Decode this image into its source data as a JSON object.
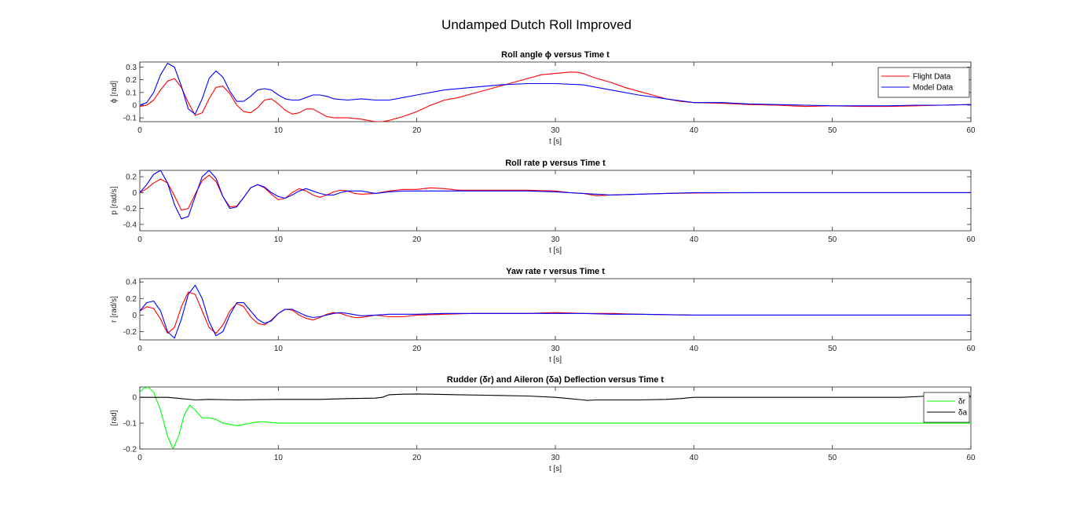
{
  "figure": {
    "title": "Undamped Dutch Roll Improved"
  },
  "chart_data": [
    {
      "type": "line",
      "title": "Roll angle ϕ versus Time t",
      "xlabel": "t [s]",
      "ylabel": "ϕ [rad]",
      "xlim": [
        0,
        60
      ],
      "ylim": [
        -0.13,
        0.34
      ],
      "xticks": [
        "0",
        "10",
        "20",
        "30",
        "40",
        "50",
        "60"
      ],
      "yticks": [
        "0.3",
        "0.2",
        "0.1",
        "0",
        "-0.1"
      ],
      "ytick_values": [
        0.3,
        0.2,
        0.1,
        0,
        -0.1
      ],
      "legend_position": "top-right",
      "series": [
        {
          "name": "Flight Data",
          "color": "#ff0000",
          "x": [
            0,
            0.5,
            1,
            1.5,
            2,
            2.5,
            3,
            3.5,
            4,
            4.5,
            5,
            5.5,
            6,
            6.5,
            7,
            7.5,
            8,
            8.5,
            9,
            9.5,
            10,
            10.5,
            11,
            11.5,
            12,
            12.5,
            13,
            13.5,
            14,
            15,
            16,
            17,
            17.5,
            18,
            19,
            20,
            21,
            22,
            23,
            24,
            25,
            26,
            27,
            28,
            29,
            30,
            31,
            31.5,
            32,
            33,
            34,
            35,
            36,
            37,
            38,
            39,
            40,
            42,
            44,
            46,
            48,
            50,
            52,
            54,
            56,
            58,
            60
          ],
          "y": [
            -0.01,
            0.0,
            0.04,
            0.12,
            0.19,
            0.21,
            0.14,
            0.02,
            -0.08,
            -0.06,
            0.05,
            0.14,
            0.15,
            0.09,
            0.0,
            -0.05,
            -0.06,
            -0.02,
            0.04,
            0.05,
            0.01,
            -0.04,
            -0.07,
            -0.06,
            -0.03,
            -0.03,
            -0.06,
            -0.09,
            -0.1,
            -0.1,
            -0.11,
            -0.13,
            -0.13,
            -0.12,
            -0.09,
            -0.05,
            -0.0,
            0.04,
            0.06,
            0.09,
            0.12,
            0.15,
            0.18,
            0.21,
            0.24,
            0.25,
            0.26,
            0.26,
            0.25,
            0.21,
            0.18,
            0.14,
            0.11,
            0.08,
            0.05,
            0.03,
            0.02,
            0.015,
            0.005,
            0.0,
            -0.01,
            -0.005,
            -0.01,
            -0.01,
            -0.005,
            0.0,
            0.005
          ]
        },
        {
          "name": "Model Data",
          "color": "#0000ff",
          "x": [
            0,
            0.5,
            1,
            1.5,
            2,
            2.5,
            3,
            3.5,
            4,
            4.5,
            5,
            5.5,
            6,
            6.5,
            7,
            7.5,
            8,
            8.5,
            9,
            9.5,
            10,
            10.5,
            11,
            11.5,
            12,
            12.5,
            13,
            13.5,
            14,
            15,
            16,
            17,
            18,
            19,
            20,
            22,
            24,
            26,
            28,
            30,
            32,
            34,
            36,
            38,
            40,
            42,
            44,
            46,
            48,
            50,
            52,
            54,
            56,
            58,
            60
          ],
          "y": [
            0.0,
            0.02,
            0.1,
            0.24,
            0.33,
            0.3,
            0.15,
            -0.03,
            -0.07,
            0.05,
            0.21,
            0.27,
            0.22,
            0.11,
            0.03,
            0.03,
            0.07,
            0.12,
            0.13,
            0.12,
            0.08,
            0.05,
            0.04,
            0.04,
            0.06,
            0.08,
            0.08,
            0.07,
            0.05,
            0.04,
            0.05,
            0.04,
            0.04,
            0.06,
            0.08,
            0.12,
            0.14,
            0.16,
            0.17,
            0.17,
            0.16,
            0.12,
            0.08,
            0.05,
            0.02,
            0.02,
            0.01,
            0.005,
            0.0,
            -0.005,
            -0.005,
            -0.005,
            0.0,
            0.0,
            0.005
          ]
        }
      ]
    },
    {
      "type": "line",
      "title": "Roll rate p versus Time t",
      "xlabel": "t [s]",
      "ylabel": "p [rad/s]",
      "xlim": [
        0,
        60
      ],
      "ylim": [
        -0.48,
        0.28
      ],
      "xticks": [
        "0",
        "10",
        "20",
        "30",
        "40",
        "50",
        "60"
      ],
      "yticks": [
        "0.2",
        "0",
        "-0.2",
        "-0.4"
      ],
      "ytick_values": [
        0.2,
        0,
        -0.2,
        -0.4
      ],
      "series": [
        {
          "color": "#ff0000",
          "x": [
            0,
            0.5,
            1,
            1.5,
            2,
            2.5,
            3,
            3.5,
            4,
            4.5,
            5,
            5.5,
            6,
            6.5,
            7,
            7.5,
            8,
            8.5,
            9,
            9.5,
            10,
            10.5,
            11,
            11.5,
            12,
            12.5,
            13,
            13.5,
            14,
            14.5,
            15,
            15.5,
            16,
            17,
            18,
            19,
            20,
            21,
            22,
            23,
            24,
            26,
            28,
            30,
            31,
            32,
            33,
            34,
            36,
            38,
            40,
            45,
            50,
            55,
            60
          ],
          "y": [
            0.0,
            0.05,
            0.12,
            0.17,
            0.12,
            -0.04,
            -0.22,
            -0.2,
            -0.02,
            0.15,
            0.22,
            0.14,
            -0.05,
            -0.18,
            -0.17,
            -0.06,
            0.06,
            0.1,
            0.06,
            -0.02,
            -0.09,
            -0.07,
            0.0,
            0.05,
            0.02,
            -0.03,
            -0.06,
            -0.03,
            0.01,
            0.03,
            0.02,
            -0.01,
            -0.02,
            -0.01,
            0.02,
            0.04,
            0.04,
            0.06,
            0.05,
            0.03,
            0.03,
            0.03,
            0.03,
            0.02,
            0.0,
            -0.01,
            -0.04,
            -0.03,
            -0.02,
            -0.01,
            -0.005,
            0.0,
            0.0,
            0.0,
            0.0
          ]
        },
        {
          "color": "#0000ff",
          "x": [
            0,
            0.5,
            1,
            1.5,
            2,
            2.5,
            3,
            3.5,
            4,
            4.5,
            5,
            5.5,
            6,
            6.5,
            7,
            7.5,
            8,
            8.5,
            9,
            9.5,
            10,
            10.5,
            11,
            11.5,
            12,
            12.5,
            13,
            13.5,
            14,
            14.5,
            15,
            16,
            17,
            18,
            19,
            20,
            22,
            24,
            26,
            28,
            30,
            31,
            32,
            34,
            36,
            38,
            40,
            45,
            50,
            55,
            60
          ],
          "y": [
            0.0,
            0.1,
            0.23,
            0.28,
            0.12,
            -0.15,
            -0.33,
            -0.3,
            -0.05,
            0.2,
            0.28,
            0.18,
            -0.05,
            -0.2,
            -0.18,
            -0.06,
            0.06,
            0.1,
            0.07,
            0.0,
            -0.05,
            -0.07,
            -0.03,
            0.02,
            0.05,
            0.02,
            -0.01,
            -0.03,
            -0.03,
            0.0,
            0.02,
            0.02,
            -0.01,
            0.01,
            0.02,
            0.02,
            0.02,
            0.02,
            0.02,
            0.02,
            0.01,
            0.0,
            -0.01,
            -0.03,
            -0.02,
            -0.01,
            0.0,
            0.0,
            0.0,
            0.0,
            0.0
          ]
        }
      ]
    },
    {
      "type": "line",
      "title": "Yaw rate r versus Time t",
      "xlabel": "t [s]",
      "ylabel": "r [rad/s]",
      "xlim": [
        0,
        60
      ],
      "ylim": [
        -0.3,
        0.44
      ],
      "xticks": [
        "0",
        "10",
        "20",
        "30",
        "40",
        "50",
        "60"
      ],
      "yticks": [
        "0.4",
        "0.2",
        "0",
        "-0.2"
      ],
      "ytick_values": [
        0.4,
        0.2,
        0,
        -0.2
      ],
      "series": [
        {
          "color": "#ff0000",
          "x": [
            0,
            0.5,
            1,
            1.5,
            2,
            2.5,
            3,
            3.5,
            4,
            4.5,
            5,
            5.5,
            6,
            6.5,
            7,
            7.5,
            8,
            8.5,
            9,
            9.5,
            10,
            10.5,
            11,
            11.5,
            12,
            12.5,
            13,
            13.5,
            14,
            14.5,
            15,
            15.5,
            16,
            17,
            18,
            19,
            20,
            22,
            24,
            26,
            28,
            30,
            32,
            34,
            36,
            40,
            45,
            50,
            55,
            60
          ],
          "y": [
            0.05,
            0.1,
            0.08,
            -0.05,
            -0.22,
            -0.15,
            0.1,
            0.28,
            0.25,
            0.05,
            -0.15,
            -0.22,
            -0.12,
            0.05,
            0.14,
            0.1,
            -0.02,
            -0.1,
            -0.12,
            -0.06,
            0.02,
            0.07,
            0.06,
            0.0,
            -0.04,
            -0.06,
            -0.03,
            0.01,
            0.03,
            0.02,
            -0.01,
            -0.03,
            -0.03,
            0.0,
            -0.02,
            -0.02,
            0.0,
            0.01,
            0.02,
            0.02,
            0.02,
            0.03,
            0.02,
            0.02,
            0.01,
            0.0,
            0.0,
            0.0,
            0.0,
            0.0
          ]
        },
        {
          "color": "#0000ff",
          "x": [
            0,
            0.5,
            1,
            1.5,
            2,
            2.5,
            3,
            3.5,
            4,
            4.5,
            5,
            5.5,
            6,
            6.5,
            7,
            7.5,
            8,
            8.5,
            9,
            9.5,
            10,
            10.5,
            11,
            11.5,
            12,
            12.5,
            13,
            13.5,
            14,
            14.5,
            15,
            16,
            17,
            18,
            19,
            20,
            22,
            24,
            26,
            28,
            30,
            32,
            34,
            36,
            40,
            45,
            50,
            55,
            60
          ],
          "y": [
            0.05,
            0.15,
            0.17,
            0.05,
            -0.2,
            -0.28,
            -0.05,
            0.25,
            0.36,
            0.2,
            -0.08,
            -0.25,
            -0.2,
            0.0,
            0.15,
            0.15,
            0.05,
            -0.05,
            -0.1,
            -0.07,
            0.02,
            0.07,
            0.07,
            0.03,
            -0.01,
            -0.03,
            -0.02,
            0.0,
            0.02,
            0.03,
            0.02,
            -0.01,
            0.0,
            0.01,
            0.01,
            0.01,
            0.02,
            0.02,
            0.02,
            0.02,
            0.02,
            0.02,
            0.01,
            0.01,
            0.0,
            0.0,
            0.0,
            0.0,
            0.0
          ]
        }
      ]
    },
    {
      "type": "line",
      "title": "Rudder (δr) and Aileron (δa) Deflection versus Time t",
      "xlabel": "t [s]",
      "ylabel": "[rad]",
      "xlim": [
        0,
        60
      ],
      "ylim": [
        -0.2,
        0.04
      ],
      "xticks": [
        "0",
        "10",
        "20",
        "30",
        "40",
        "50",
        "60"
      ],
      "yticks": [
        "0",
        "-0.1",
        "-0.2"
      ],
      "ytick_values": [
        0,
        -0.1,
        -0.2
      ],
      "legend_position": "top-right",
      "series": [
        {
          "name": "δr",
          "color": "#00ff00",
          "x": [
            0,
            0.3,
            0.6,
            1,
            1.5,
            2,
            2.4,
            2.8,
            3.2,
            3.6,
            4,
            4.5,
            5,
            5.5,
            6,
            6.5,
            7,
            7.5,
            8,
            8.5,
            9,
            10,
            11,
            12,
            15,
            20,
            30,
            40,
            50,
            60
          ],
          "y": [
            0.02,
            0.035,
            0.04,
            0.02,
            -0.05,
            -0.15,
            -0.2,
            -0.15,
            -0.07,
            -0.03,
            -0.05,
            -0.08,
            -0.08,
            -0.085,
            -0.1,
            -0.105,
            -0.11,
            -0.105,
            -0.1,
            -0.095,
            -0.095,
            -0.1,
            -0.1,
            -0.1,
            -0.1,
            -0.1,
            -0.1,
            -0.1,
            -0.1,
            -0.1
          ]
        },
        {
          "name": "δa",
          "color": "#000000",
          "x": [
            0,
            2,
            3,
            4,
            5,
            7,
            10,
            13,
            15,
            17,
            17.5,
            18,
            19,
            20,
            21,
            23,
            25,
            28,
            30,
            31,
            32,
            32.3,
            33,
            36,
            38,
            39,
            40,
            45,
            50,
            55,
            57,
            60
          ],
          "y": [
            0.0,
            0.0,
            -0.005,
            -0.01,
            -0.008,
            -0.01,
            -0.008,
            -0.008,
            -0.005,
            -0.003,
            0.0,
            0.01,
            0.012,
            0.013,
            0.012,
            0.01,
            0.008,
            0.005,
            0.0,
            -0.005,
            -0.01,
            -0.012,
            -0.01,
            -0.01,
            -0.008,
            -0.005,
            0.0,
            0.0,
            0.0,
            0.0,
            0.005,
            0.005
          ]
        }
      ]
    }
  ]
}
